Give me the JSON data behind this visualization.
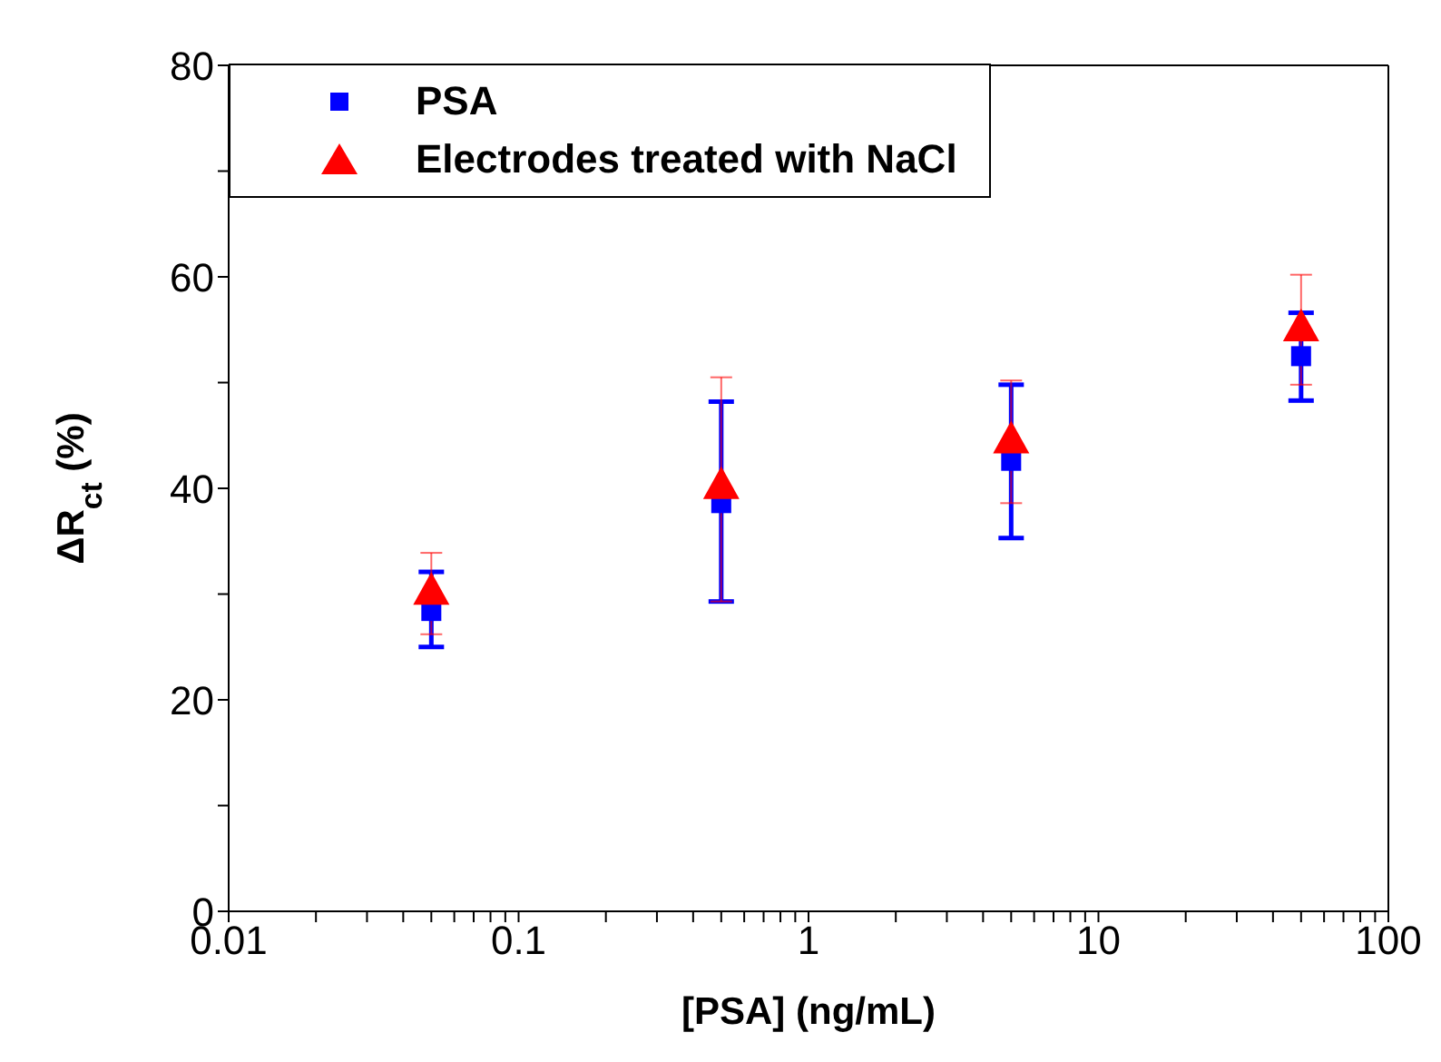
{
  "chart_data": {
    "type": "scatter",
    "xlabel": "[PSA] (ng/mL)",
    "ylabel": "ΔR$_{ct}$ (%)",
    "log": "x",
    "x": [
      0.05,
      0.5,
      5,
      50
    ],
    "series": [
      {
        "name": "PSA",
        "color": "#0000ff",
        "marker": "square",
        "values": [
          28.4,
          38.6,
          42.6,
          52.5
        ],
        "errors": [
          [
            25.0,
            32.1
          ],
          [
            29.3,
            48.2
          ],
          [
            35.3,
            49.8
          ],
          [
            48.3,
            56.6
          ]
        ]
      },
      {
        "name": "Electrodes treated with NaCl",
        "color": "#ff0000",
        "marker": "triangle",
        "values": [
          30.2,
          40.2,
          44.5,
          55.1
        ],
        "errors": [
          [
            26.2,
            33.9
          ],
          [
            29.3,
            50.5
          ],
          [
            38.6,
            50.2
          ],
          [
            49.8,
            60.2
          ]
        ]
      }
    ],
    "xlim": [
      0.01,
      100
    ],
    "xticks": [
      0.01,
      {
        "value": 0.02,
        "label": null
      },
      {
        "value": 0.03,
        "label": null
      },
      {
        "value": 0.04,
        "label": null
      },
      {
        "value": 0.05,
        "label": null
      },
      {
        "value": 0.06,
        "label": null
      },
      {
        "value": 0.07,
        "label": null
      },
      {
        "value": 0.08,
        "label": null
      },
      {
        "value": 0.09,
        "label": null
      },
      0.1,
      {
        "value": 0.2,
        "label": null
      },
      {
        "value": 0.3,
        "label": null
      },
      {
        "value": 0.4,
        "label": null
      },
      {
        "value": 0.5,
        "label": null
      },
      {
        "value": 0.6,
        "label": null
      },
      {
        "value": 0.7,
        "label": null
      },
      {
        "value": 0.8,
        "label": null
      },
      {
        "value": 0.9,
        "label": null
      },
      1,
      {
        "value": 2,
        "label": null
      },
      {
        "value": 3,
        "label": null
      },
      {
        "value": 4,
        "label": null
      },
      {
        "value": 5,
        "label": null
      },
      {
        "value": 6,
        "label": null
      },
      {
        "value": 7,
        "label": null
      },
      {
        "value": 8,
        "label": null
      },
      {
        "value": 9,
        "label": null
      },
      10,
      {
        "value": 20,
        "label": null
      },
      {
        "value": 30,
        "label": null
      },
      {
        "value": 40,
        "label": null
      },
      {
        "value": 50,
        "label": null
      },
      {
        "value": 60,
        "label": null
      },
      {
        "value": 70,
        "label": null
      },
      {
        "value": 80,
        "label": null
      },
      {
        "value": 90,
        "label": null
      },
      100
    ],
    "ylim": [
      0,
      80
    ],
    "yticks": [
      0,
      {
        "value": 10,
        "label": null
      },
      20,
      {
        "value": 30,
        "label": null
      },
      40,
      {
        "value": 50,
        "label": null
      },
      60,
      {
        "value": 70,
        "label": null
      },
      80
    ],
    "grid": false,
    "legend": "top left"
  }
}
